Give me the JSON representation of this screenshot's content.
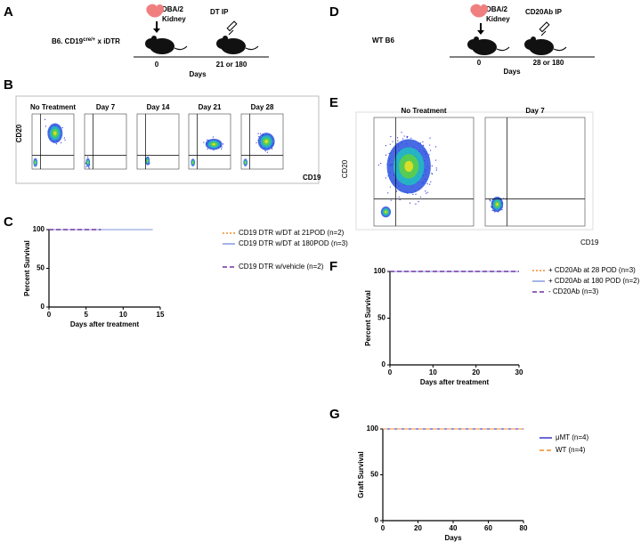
{
  "panel_labels": [
    "A",
    "B",
    "C",
    "D",
    "E",
    "F",
    "G"
  ],
  "schematic_a": {
    "donor": [
      "DBA/2",
      "Kidney"
    ],
    "treatment": "DT IP",
    "recipient": "B6. CD19",
    "recipient_sup": "cre/+",
    "recipient_tail": " x iDTR",
    "timepoints": [
      "0",
      "21 or 180"
    ],
    "axis_label": "Days"
  },
  "schematic_d": {
    "donor": [
      "DBA/2",
      "Kidney"
    ],
    "treatment": "CD20Ab IP",
    "recipient": "WT B6",
    "timepoints": [
      "0",
      "28 or 180"
    ],
    "axis_label": "Days"
  },
  "flow_b": {
    "titles": [
      "No Treatment",
      "Day 7",
      "Day 14",
      "Day 21",
      "Day 28"
    ],
    "xlabel": "CD19",
    "ylabel": "CD20"
  },
  "flow_e": {
    "titles": [
      "No Treatment",
      "Day 7"
    ],
    "xlabel": "CD19",
    "ylabel": "CD20"
  },
  "chart_data": [
    {
      "type": "line",
      "ylabel": "Percent Survival",
      "xlabel": "Days after treatment",
      "xlim": [
        0,
        15
      ],
      "xticks": [
        0,
        5,
        10,
        15
      ],
      "ylim": [
        0,
        100
      ],
      "yticks": [
        0,
        50,
        100
      ],
      "series": [
        {
          "name": "CD19 DTR w/DT at 21POD (n=2)",
          "color": "#f28c28",
          "dash": "dotted",
          "x": [
            0,
            7
          ],
          "values": [
            100,
            100
          ]
        },
        {
          "name": "CD19 DTR w/DT at 180POD (n=3)",
          "color": "#7f93dc",
          "dash": "solid",
          "x": [
            0,
            14
          ],
          "values": [
            100,
            100
          ]
        },
        {
          "name": "CD19 DTR w/vehicle (n=2)",
          "color": "#7030a0",
          "dash": "dashed",
          "x": [
            0,
            7
          ],
          "values": [
            100,
            100
          ]
        }
      ]
    },
    {
      "type": "line",
      "ylabel": "Percent Survival",
      "xlabel": "Days after treatment",
      "xlim": [
        0,
        30
      ],
      "xticks": [
        0,
        10,
        20,
        30
      ],
      "ylim": [
        0,
        100
      ],
      "yticks": [
        0,
        50,
        100
      ],
      "series": [
        {
          "name": "+ CD20Ab at 28 POD (n=3)",
          "color": "#f28c28",
          "dash": "dotted",
          "x": [
            0,
            30
          ],
          "values": [
            100,
            100
          ]
        },
        {
          "name": "+ CD20Ab at 180 POD (n=2)",
          "color": "#7f93dc",
          "dash": "solid",
          "x": [
            0,
            30
          ],
          "values": [
            100,
            100
          ]
        },
        {
          "name": "- CD20Ab (n=3)",
          "color": "#7030a0",
          "dash": "dashed",
          "x": [
            0,
            30
          ],
          "values": [
            100,
            100
          ]
        }
      ]
    },
    {
      "type": "line",
      "ylabel": "Graft Survival",
      "xlabel": "Days",
      "xlim": [
        0,
        80
      ],
      "xticks": [
        0,
        20,
        40,
        60,
        80
      ],
      "ylim": [
        0,
        100
      ],
      "yticks": [
        0,
        50,
        100
      ],
      "series": [
        {
          "name": "μMT (n=4)",
          "color": "#2b2bc8",
          "dash": "solid",
          "x": [
            0,
            80
          ],
          "values": [
            100,
            100
          ]
        },
        {
          "name": "WT (n=4)",
          "color": "#f28c28",
          "dash": "dashed",
          "x": [
            0,
            80
          ],
          "values": [
            100,
            100
          ]
        }
      ]
    }
  ]
}
